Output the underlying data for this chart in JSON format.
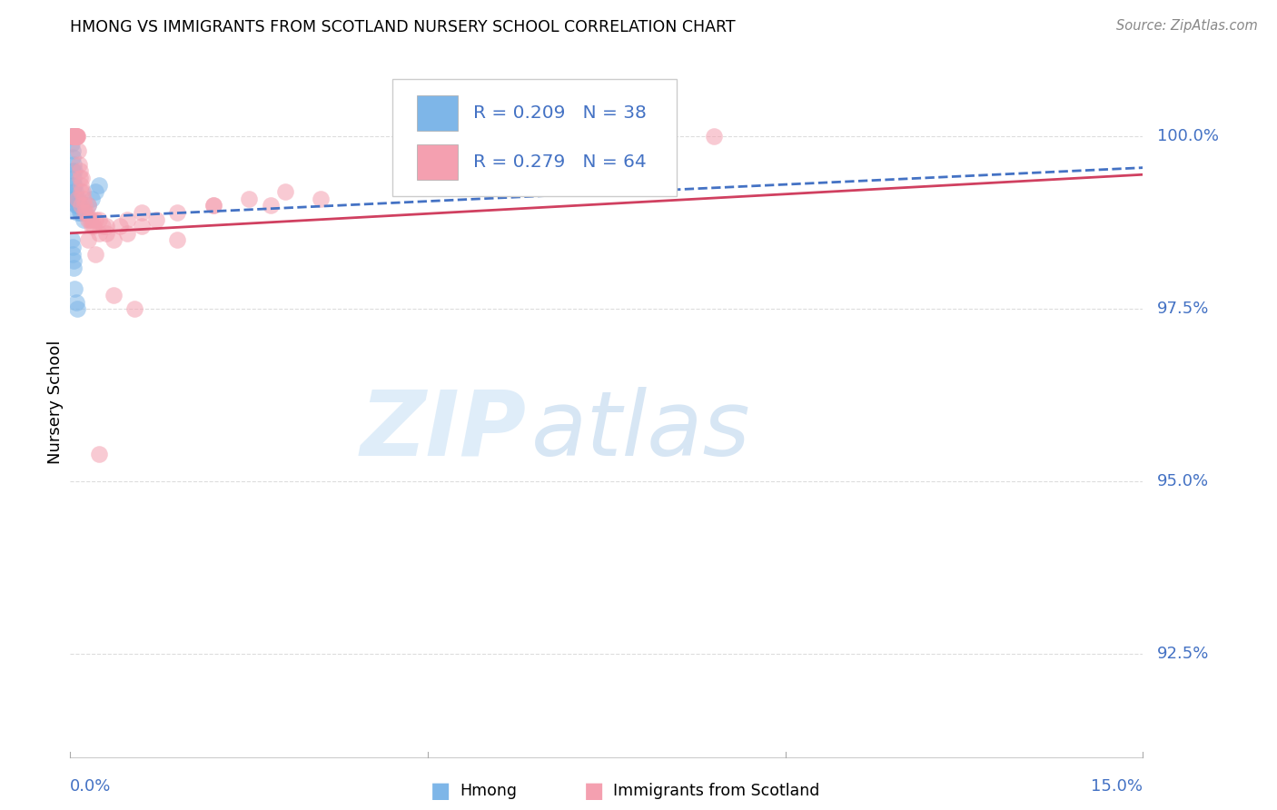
{
  "title": "HMONG VS IMMIGRANTS FROM SCOTLAND NURSERY SCHOOL CORRELATION CHART",
  "source": "Source: ZipAtlas.com",
  "ylabel": "Nursery School",
  "xlim": [
    0.0,
    15.0
  ],
  "ylim": [
    91.0,
    101.3
  ],
  "yticks": [
    92.5,
    95.0,
    97.5,
    100.0
  ],
  "ytick_labels": [
    "92.5%",
    "95.0%",
    "97.5%",
    "100.0%"
  ],
  "hmong_color": "#7EB6E8",
  "scotland_color": "#F4A0B0",
  "hmong_line_color": "#4472C4",
  "scotland_line_color": "#D04060",
  "hmong_R": 0.209,
  "hmong_N": 38,
  "scotland_R": 0.279,
  "scotland_N": 64,
  "legend_label_hmong": "Hmong",
  "legend_label_scotland": "Immigrants from Scotland",
  "watermark_zip": "ZIP",
  "watermark_atlas": "atlas",
  "label_color": "#4472C4",
  "grid_color": "#dddddd",
  "title_fontsize": 12.5,
  "label_fontsize": 13,
  "marker_size": 180,
  "marker_alpha": 0.55,
  "hmong_x": [
    0.02,
    0.02,
    0.03,
    0.03,
    0.04,
    0.04,
    0.04,
    0.05,
    0.05,
    0.05,
    0.05,
    0.05,
    0.06,
    0.06,
    0.07,
    0.08,
    0.08,
    0.09,
    0.1,
    0.1,
    0.11,
    0.12,
    0.13,
    0.15,
    0.18,
    0.2,
    0.25,
    0.3,
    0.35,
    0.4,
    0.02,
    0.03,
    0.04,
    0.05,
    0.05,
    0.06,
    0.08,
    0.1
  ],
  "hmong_y": [
    100.0,
    99.9,
    100.0,
    99.8,
    99.7,
    99.5,
    100.0,
    99.6,
    99.4,
    99.3,
    99.2,
    99.1,
    99.5,
    99.3,
    99.2,
    99.0,
    99.1,
    99.0,
    98.9,
    99.0,
    99.1,
    99.0,
    98.9,
    98.9,
    98.8,
    98.9,
    99.0,
    99.1,
    99.2,
    99.3,
    98.5,
    98.4,
    98.3,
    98.2,
    98.1,
    97.8,
    97.6,
    97.5
  ],
  "scotland_x": [
    0.02,
    0.03,
    0.04,
    0.04,
    0.05,
    0.05,
    0.05,
    0.06,
    0.06,
    0.07,
    0.07,
    0.08,
    0.08,
    0.09,
    0.09,
    0.1,
    0.1,
    0.11,
    0.12,
    0.13,
    0.14,
    0.15,
    0.15,
    0.16,
    0.17,
    0.18,
    0.2,
    0.22,
    0.25,
    0.28,
    0.3,
    0.33,
    0.35,
    0.4,
    0.45,
    0.5,
    0.6,
    0.7,
    0.8,
    1.0,
    1.2,
    1.5,
    2.0,
    2.5,
    3.0,
    0.1,
    0.15,
    0.2,
    0.25,
    0.3,
    0.4,
    0.5,
    0.8,
    1.0,
    2.0,
    0.6,
    0.9,
    0.35,
    1.5,
    3.5,
    2.8,
    0.25,
    9.0,
    0.4
  ],
  "scotland_y": [
    100.0,
    100.0,
    100.0,
    100.0,
    100.0,
    100.0,
    100.0,
    100.0,
    100.0,
    100.0,
    100.0,
    100.0,
    100.0,
    100.0,
    100.0,
    100.0,
    100.0,
    99.8,
    99.6,
    99.5,
    99.4,
    99.3,
    99.2,
    99.4,
    99.2,
    99.1,
    99.0,
    98.9,
    99.0,
    98.8,
    98.8,
    98.7,
    98.8,
    98.6,
    98.7,
    98.6,
    98.5,
    98.7,
    98.6,
    98.7,
    98.8,
    98.9,
    99.0,
    99.1,
    99.2,
    99.1,
    99.0,
    98.9,
    98.8,
    98.7,
    98.8,
    98.7,
    98.8,
    98.9,
    99.0,
    97.7,
    97.5,
    98.3,
    98.5,
    99.1,
    99.0,
    98.5,
    100.0,
    95.4
  ],
  "trend_hmong_x0": 0.0,
  "trend_hmong_y0": 98.82,
  "trend_hmong_x1": 15.0,
  "trend_hmong_y1": 99.55,
  "trend_scotland_x0": 0.0,
  "trend_scotland_y0": 98.6,
  "trend_scotland_x1": 15.0,
  "trend_scotland_y1": 99.45
}
